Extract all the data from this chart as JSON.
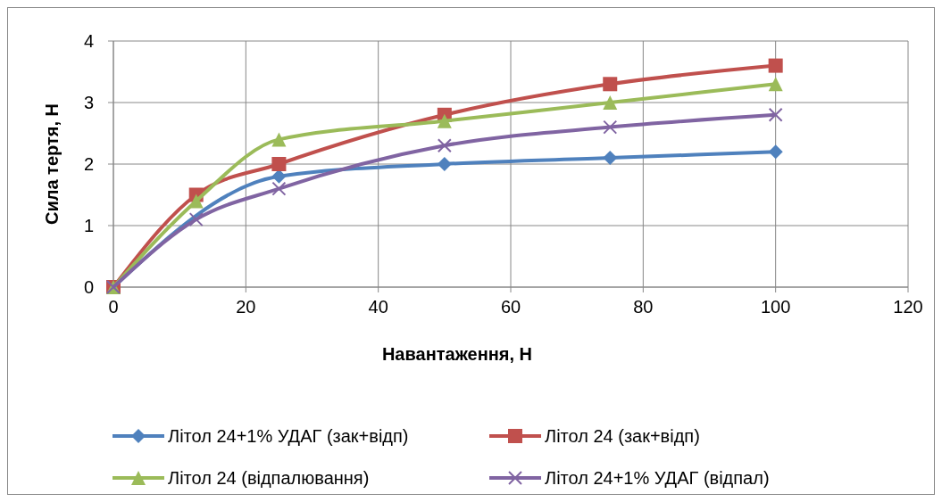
{
  "chart_data": {
    "type": "line",
    "xlabel": "Навантаження, Н",
    "ylabel": "Сила тертя, Н",
    "x": [
      0,
      12.5,
      25,
      50,
      75,
      100
    ],
    "xlim": [
      0,
      120
    ],
    "xticks": [
      0,
      20,
      40,
      60,
      80,
      100,
      120
    ],
    "ylim": [
      0,
      4
    ],
    "yticks": [
      0,
      1,
      2,
      3,
      4
    ],
    "grid": true,
    "legend": "bottom",
    "series": [
      {
        "name": "Літол 24+1% УДАГ (зак+відп)",
        "color": "#4f81bd",
        "marker": "diamond",
        "values": [
          0,
          null,
          1.8,
          2.0,
          2.1,
          2.2
        ]
      },
      {
        "name": "Літол 24 (зак+відп)",
        "color": "#c0504d",
        "marker": "square",
        "values": [
          0,
          1.5,
          2.0,
          2.8,
          3.3,
          3.6
        ]
      },
      {
        "name": "Літол 24 (відпалювання)",
        "color": "#9bbb59",
        "marker": "triangle",
        "values": [
          0,
          1.4,
          2.4,
          2.7,
          3.0,
          3.3
        ]
      },
      {
        "name": "Літол 24+1% УДАГ (відпал)",
        "color": "#8064a2",
        "marker": "cross",
        "values": [
          0,
          1.1,
          1.6,
          2.3,
          2.6,
          2.8
        ]
      }
    ]
  }
}
